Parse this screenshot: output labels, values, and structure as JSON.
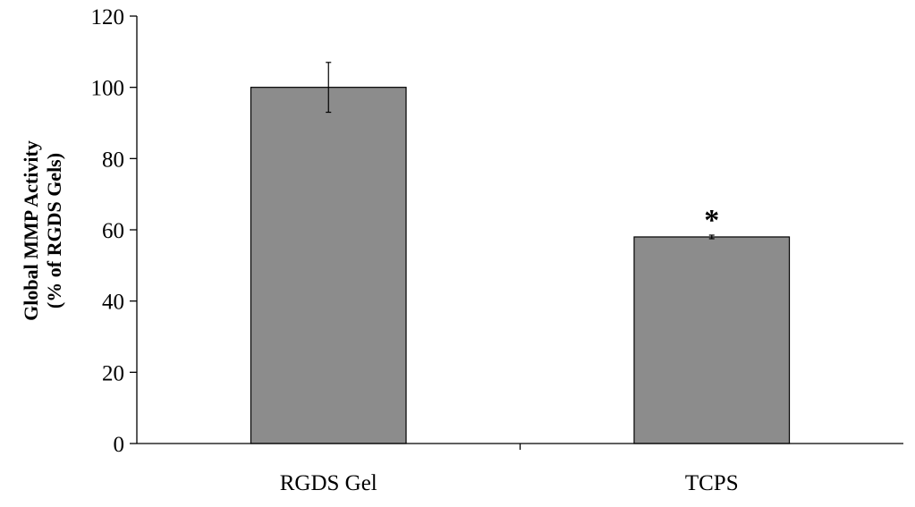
{
  "chart_data": {
    "type": "bar",
    "title": "",
    "xlabel": "",
    "ylabel_lines": [
      "Global MMP Activity",
      "(% of RGDS Gels)"
    ],
    "categories": [
      "RGDS Gel",
      "TCPS"
    ],
    "values": [
      100,
      58
    ],
    "errors": [
      7,
      0.5
    ],
    "annotations": [
      "",
      "*"
    ],
    "ylim": [
      0,
      120
    ],
    "yticks": [
      0,
      20,
      40,
      60,
      80,
      100,
      120
    ],
    "grid": false,
    "legend": "none",
    "bar_color": "#8c8c8c"
  }
}
